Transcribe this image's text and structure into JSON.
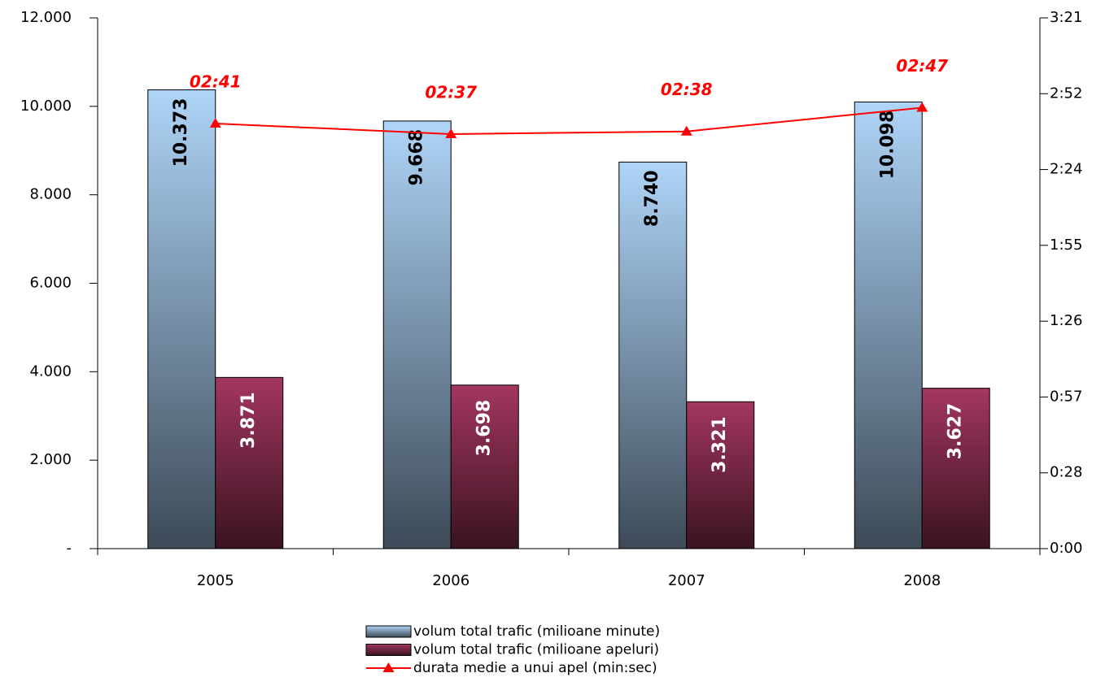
{
  "chart_data": {
    "type": "bar_line",
    "categories": [
      "2005",
      "2006",
      "2007",
      "2008"
    ],
    "series": [
      {
        "name": "volum total trafic (milioane minute)",
        "type": "bar",
        "color": "#aed4f7",
        "label_color": "#000000",
        "values": [
          10373,
          9668,
          8740,
          10098
        ],
        "value_labels": [
          "10.373",
          "9.668",
          "8.740",
          "10.098"
        ]
      },
      {
        "name": "volum total trafic (milioane apeluri)",
        "type": "bar",
        "color": "#a3365f",
        "label_color": "#ffffff",
        "values": [
          3871,
          3698,
          3321,
          3627
        ],
        "value_labels": [
          "3.871",
          "3.698",
          "3.321",
          "3.627"
        ]
      },
      {
        "name": "durata medie a unui apel (min:sec)",
        "type": "line",
        "axis": "y2",
        "color": "#ff0000",
        "values": [
          161,
          157,
          158,
          167
        ],
        "value_labels": [
          "02:41",
          "02:37",
          "02:38",
          "02:47"
        ]
      }
    ],
    "ylim": [
      0,
      12000
    ],
    "yticks": [
      {
        "value": 0,
        "label": "-"
      },
      {
        "value": 2000,
        "label": "2.000"
      },
      {
        "value": 4000,
        "label": "4.000"
      },
      {
        "value": 6000,
        "label": "6.000"
      },
      {
        "value": 8000,
        "label": "8.000"
      },
      {
        "value": 10000,
        "label": "10.000"
      },
      {
        "value": 12000,
        "label": "12.000"
      }
    ],
    "y2lim": [
      0,
      201
    ],
    "y2ticks": [
      {
        "value": 0,
        "label": "0:00"
      },
      {
        "value": 28.71,
        "label": "0:28"
      },
      {
        "value": 57.43,
        "label": "0:57"
      },
      {
        "value": 86.14,
        "label": "1:26"
      },
      {
        "value": 114.86,
        "label": "1:55"
      },
      {
        "value": 143.57,
        "label": "2:24"
      },
      {
        "value": 172.29,
        "label": "2:52"
      },
      {
        "value": 201,
        "label": "3:21"
      }
    ],
    "legend": "bottom"
  }
}
